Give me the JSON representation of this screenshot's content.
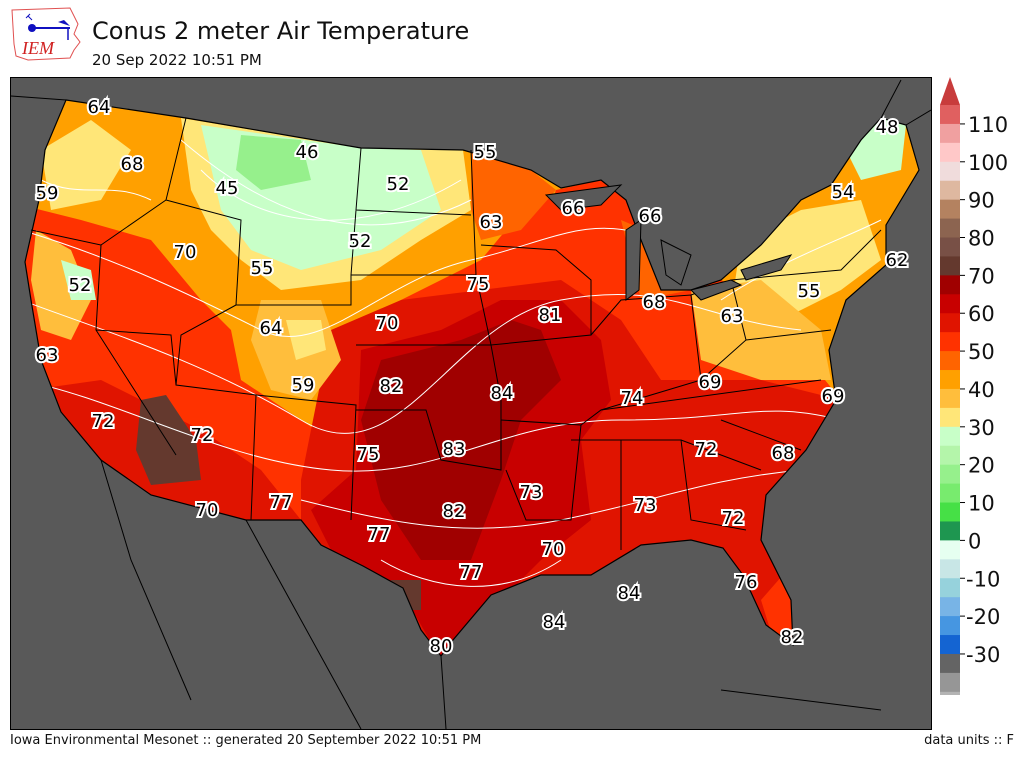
{
  "header": {
    "logo_text": "IEM",
    "title": "Conus 2 meter Air Temperature",
    "subtitle": "20 Sep 2022 10:51 PM"
  },
  "footer": {
    "left": "Iowa Environmental Mesonet :: generated 20 September 2022 10:51 PM",
    "right": "data units :: F"
  },
  "colors": {
    "ocean": "#595959",
    "land_outline": "#000000",
    "contour": "#ffffff"
  },
  "colorbar": {
    "units": "F",
    "ticks": [
      "110",
      "100",
      "90",
      "80",
      "70",
      "60",
      "50",
      "40",
      "30",
      "20",
      "10",
      "0",
      "-10",
      "-20",
      "-30"
    ],
    "bin_size": 5,
    "range": [
      -30,
      115
    ],
    "over_color": "#c83c3c",
    "under_color": "#e6e6e6",
    "colors_top_to_bottom": [
      "#e06060",
      "#f0a0a0",
      "#ffc8c8",
      "#f0dcdc",
      "#deb8a0",
      "#b48260",
      "#8c6450",
      "#785046",
      "#64392e",
      "#a00000",
      "#c80000",
      "#e01400",
      "#ff3200",
      "#ff6400",
      "#ffa000",
      "#ffbe3c",
      "#ffe678",
      "#c8ffc8",
      "#b4f5aa",
      "#96f08c",
      "#78eb6e",
      "#46e046",
      "#1e9650",
      "#e6fff0",
      "#c8e6e6",
      "#96d2dc",
      "#78b4e6",
      "#4696e1",
      "#1464d2",
      "#646464",
      "#969696",
      "#b4b4b4",
      "#d2d2d2"
    ]
  },
  "map_labels": [
    "64",
    "68",
    "59",
    "46",
    "45",
    "55",
    "52",
    "48",
    "54",
    "63",
    "66",
    "66",
    "70",
    "52",
    "55",
    "62",
    "52",
    "75",
    "55",
    "81",
    "68",
    "64",
    "70",
    "63",
    "63",
    "82",
    "59",
    "84",
    "69",
    "74",
    "69",
    "72",
    "72",
    "75",
    "83",
    "72",
    "68",
    "73",
    "73",
    "77",
    "70",
    "82",
    "72",
    "77",
    "70",
    "77",
    "76",
    "84",
    "84",
    "80",
    "82"
  ]
}
